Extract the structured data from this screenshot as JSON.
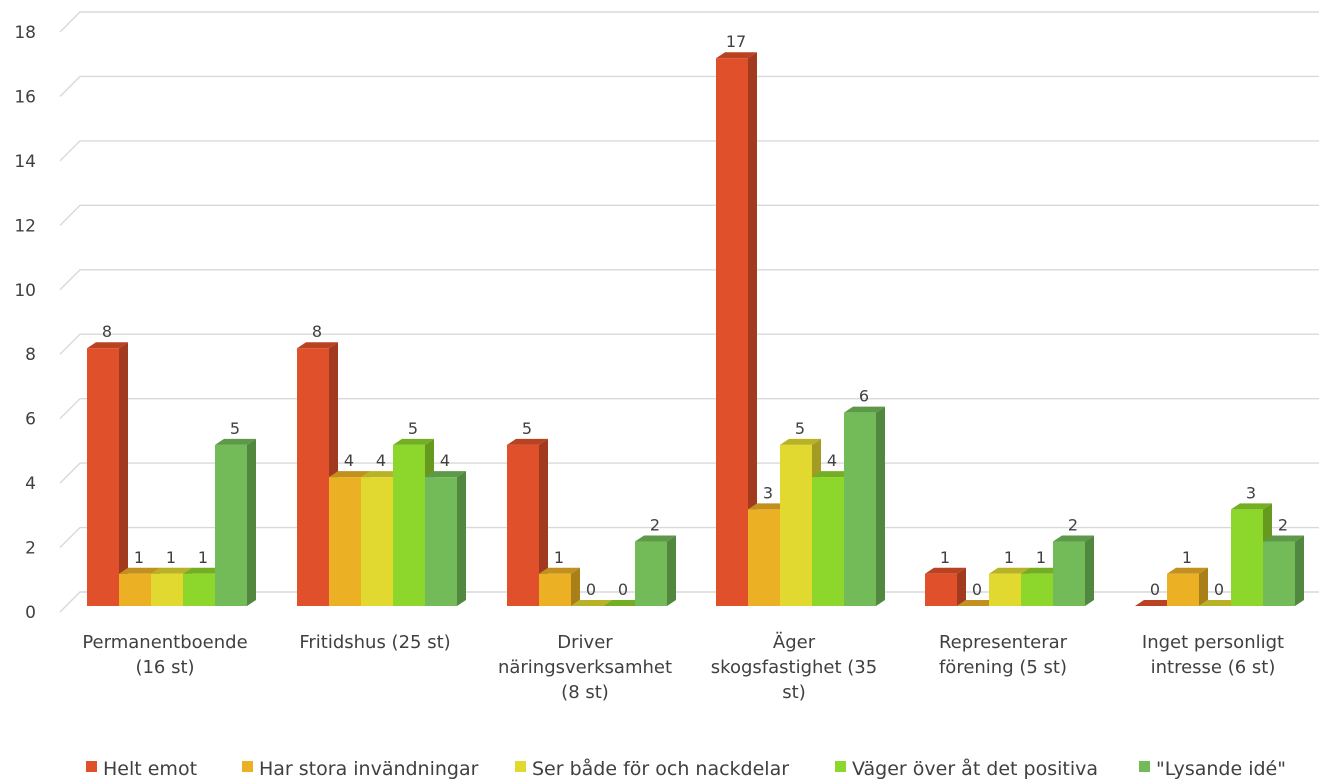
{
  "chart_data": {
    "type": "bar",
    "title": "",
    "xlabel": "",
    "ylabel": "",
    "ylim": [
      0,
      18
    ],
    "yticks": [
      0,
      2,
      4,
      6,
      8,
      10,
      12,
      14,
      16,
      18
    ],
    "grid": true,
    "legend_position": "bottom",
    "categories": [
      [
        "Permanentboende",
        "(16 st)"
      ],
      [
        "Fritidshus (25 st)"
      ],
      [
        "Driver",
        "näringsverksamhet",
        "(8 st)"
      ],
      [
        "Äger",
        "skogsfastighet (35",
        "st)"
      ],
      [
        "Representerar",
        "förening (5 st)"
      ],
      [
        "Inget personligt",
        "intresse (6 st)"
      ]
    ],
    "series": [
      {
        "name": "Helt emot",
        "color": "#E0502A",
        "values": [
          8,
          8,
          5,
          17,
          1,
          0
        ]
      },
      {
        "name": "Har stora invändningar",
        "color": "#EBB024",
        "values": [
          1,
          4,
          1,
          3,
          0,
          1
        ]
      },
      {
        "name": "Ser både för och nackdelar",
        "color": "#E2D930",
        "values": [
          1,
          4,
          0,
          5,
          1,
          0
        ]
      },
      {
        "name": "Väger över åt det positiva",
        "color": "#8DD62B",
        "values": [
          1,
          5,
          0,
          4,
          1,
          3
        ]
      },
      {
        "name": "\"Lysande idé\"",
        "color": "#72BB58",
        "values": [
          5,
          4,
          2,
          6,
          2,
          2
        ]
      }
    ]
  }
}
